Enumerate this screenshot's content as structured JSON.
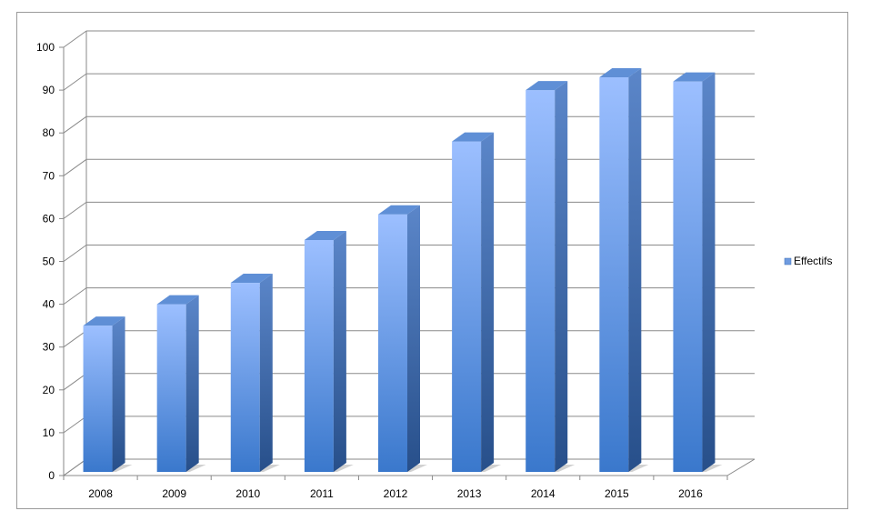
{
  "chart_data": {
    "type": "bar",
    "categories": [
      "2008",
      "2009",
      "2010",
      "2011",
      "2012",
      "2013",
      "2014",
      "2015",
      "2016"
    ],
    "series": [
      {
        "name": "Effectifs",
        "values": [
          35,
          40,
          45,
          55,
          61,
          78,
          90,
          93,
          92
        ]
      }
    ],
    "y_ticks": [
      "0",
      "10",
      "20",
      "30",
      "40",
      "50",
      "60",
      "70",
      "80",
      "90",
      "100"
    ],
    "ylim": [
      0,
      100
    ],
    "grid": true,
    "legend": {
      "position": "right",
      "label": "Effectifs"
    },
    "colors": {
      "bar_light": "#9cbfff",
      "bar_dark": "#3a78cc",
      "side": "#2f5f9f",
      "top": "#5f8fd6"
    }
  }
}
